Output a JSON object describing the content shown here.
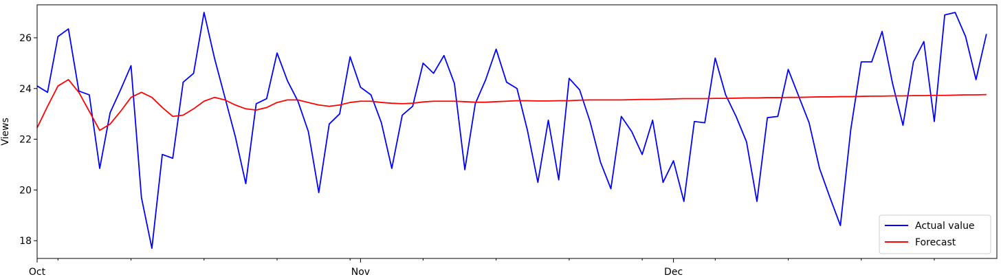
{
  "chart_data": {
    "type": "line",
    "title": "",
    "xlabel": "",
    "ylabel": "Views",
    "x_tick_labels": [
      "Oct",
      "Nov",
      "Dec"
    ],
    "y_ticks": [
      18,
      20,
      22,
      24,
      26
    ],
    "ylim": [
      17.3,
      27.3
    ],
    "xlim": [
      0,
      92
    ],
    "grid": false,
    "legend_position": "lower right",
    "series": [
      {
        "name": "Actual value",
        "color": "#0000ff",
        "values": [
          24.1,
          23.85,
          26.05,
          26.35,
          23.9,
          23.75,
          20.85,
          23.05,
          23.95,
          24.9,
          19.7,
          17.7,
          21.4,
          21.25,
          24.25,
          24.6,
          27.0,
          25.2,
          23.65,
          22.1,
          20.25,
          23.4,
          23.6,
          25.4,
          24.3,
          23.5,
          22.3,
          19.9,
          22.6,
          23.0,
          25.25,
          24.05,
          23.75,
          22.65,
          20.85,
          22.95,
          23.3,
          25.0,
          24.6,
          25.3,
          24.2,
          20.8,
          23.4,
          24.35,
          25.55,
          24.25,
          24.0,
          22.35,
          20.3,
          22.75,
          20.4,
          24.4,
          23.95,
          22.7,
          21.1,
          20.05,
          22.9,
          22.3,
          21.4,
          22.75,
          20.3,
          21.15,
          19.55,
          22.7,
          22.65,
          25.2,
          23.75,
          22.9,
          21.9,
          19.55,
          22.85,
          22.9,
          24.75,
          23.7,
          22.65,
          20.85,
          19.7,
          18.6,
          22.4,
          25.05,
          25.05,
          26.25,
          24.2,
          22.55,
          25.05,
          25.85,
          22.7,
          26.9,
          27.0,
          26.05,
          24.35,
          26.15
        ]
      },
      {
        "name": "Forecast",
        "color": "#ff0000",
        "values": [
          22.45,
          23.3,
          24.1,
          24.35,
          23.85,
          23.1,
          22.35,
          22.6,
          23.1,
          23.65,
          23.85,
          23.65,
          23.25,
          22.9,
          22.95,
          23.2,
          23.5,
          23.65,
          23.55,
          23.35,
          23.2,
          23.15,
          23.25,
          23.45,
          23.55,
          23.55,
          23.45,
          23.35,
          23.3,
          23.35,
          23.45,
          23.5,
          23.5,
          23.45,
          23.42,
          23.4,
          23.42,
          23.47,
          23.5,
          23.5,
          23.5,
          23.48,
          23.46,
          23.46,
          23.48,
          23.5,
          23.52,
          23.52,
          23.51,
          23.51,
          23.52,
          23.52,
          23.54,
          23.55,
          23.55,
          23.55,
          23.55,
          23.56,
          23.57,
          23.57,
          23.58,
          23.59,
          23.6,
          23.6,
          23.6,
          23.61,
          23.61,
          23.62,
          23.63,
          23.63,
          23.64,
          23.64,
          23.65,
          23.65,
          23.66,
          23.67,
          23.67,
          23.68,
          23.68,
          23.69,
          23.7,
          23.7,
          23.71,
          23.71,
          23.72,
          23.72,
          23.73,
          23.73,
          23.74,
          23.75,
          23.75,
          23.76
        ]
      }
    ]
  }
}
